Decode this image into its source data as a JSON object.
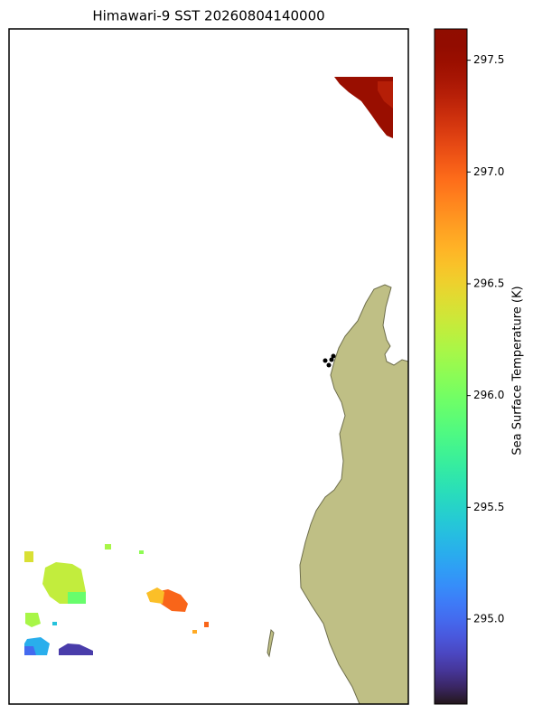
{
  "map": {
    "title": "Himawari-9 SST 20260804140000",
    "colorbar": {
      "label": "Sea Surface Temperature (K)",
      "colormap": "turbo",
      "lim": [
        294.62,
        297.64
      ],
      "ticks": [
        295.5,
        {
          "value": 295.0,
          "label": "295.0"
        },
        296.5,
        {
          "value": 296.0,
          "label": "296.0"
        },
        297.5,
        {
          "value": 297.0,
          "label": "297.0"
        }
      ]
    },
    "sst_values": [
      297.5,
      297.35,
      296.3,
      295.95,
      297.0,
      296.6,
      296.4,
      296.2,
      295.3,
      294.8,
      295.0,
      296.2,
      296.1,
      296.7,
      297.0,
      295.4
    ]
  }
}
